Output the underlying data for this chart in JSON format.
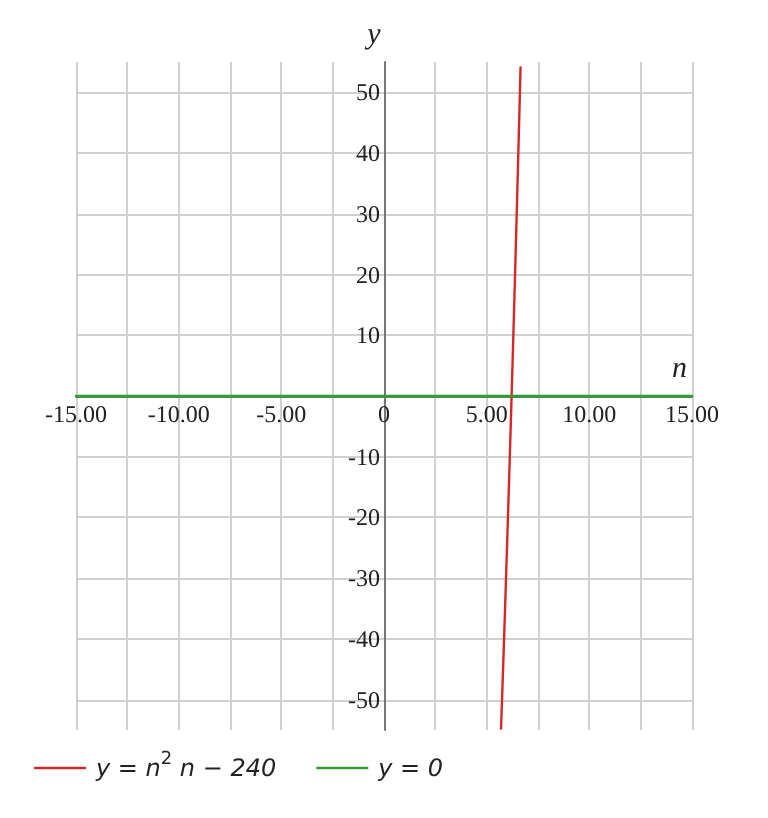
{
  "chart_data": {
    "type": "line",
    "xlabel": "n",
    "ylabel": "y",
    "xlim": [
      -15,
      15
    ],
    "ylim": [
      -55,
      55
    ],
    "xticks": [
      {
        "value": -15,
        "label": "-15.00"
      },
      {
        "value": -12.5,
        "label": null
      },
      {
        "value": -10,
        "label": "-10.00"
      },
      {
        "value": -7.5,
        "label": null
      },
      {
        "value": -5,
        "label": "-5.00"
      },
      {
        "value": -2.5,
        "label": null
      },
      {
        "value": 0,
        "label": "0"
      },
      {
        "value": 2.5,
        "label": null
      },
      {
        "value": 5,
        "label": "5.00"
      },
      {
        "value": 7.5,
        "label": null
      },
      {
        "value": 10,
        "label": "10.00"
      },
      {
        "value": 12.5,
        "label": null
      },
      {
        "value": 15,
        "label": "15.00"
      }
    ],
    "yticks": [
      -50,
      -40,
      -30,
      -20,
      -10,
      10,
      20,
      30,
      40,
      50
    ],
    "grid": true,
    "legend": "bottom left",
    "marker": "none",
    "line_style": "solid",
    "series": [
      {
        "name": "y = n$^{2}$ n − 240",
        "color": "#d62728",
        "x": [
          5.7,
          5.8,
          5.9,
          6.0,
          6.1,
          6.2,
          6.3,
          6.4,
          6.5,
          6.6,
          6.65
        ],
        "values": [
          -54.8,
          -44.9,
          -34.6,
          -24,
          -13,
          -1.7,
          10,
          22.1,
          34.6,
          47.5,
          54.1
        ]
      },
      {
        "name": "y = 0",
        "color": "#2ca02c",
        "x": [
          -15,
          15
        ],
        "values": [
          0,
          0
        ]
      }
    ]
  }
}
